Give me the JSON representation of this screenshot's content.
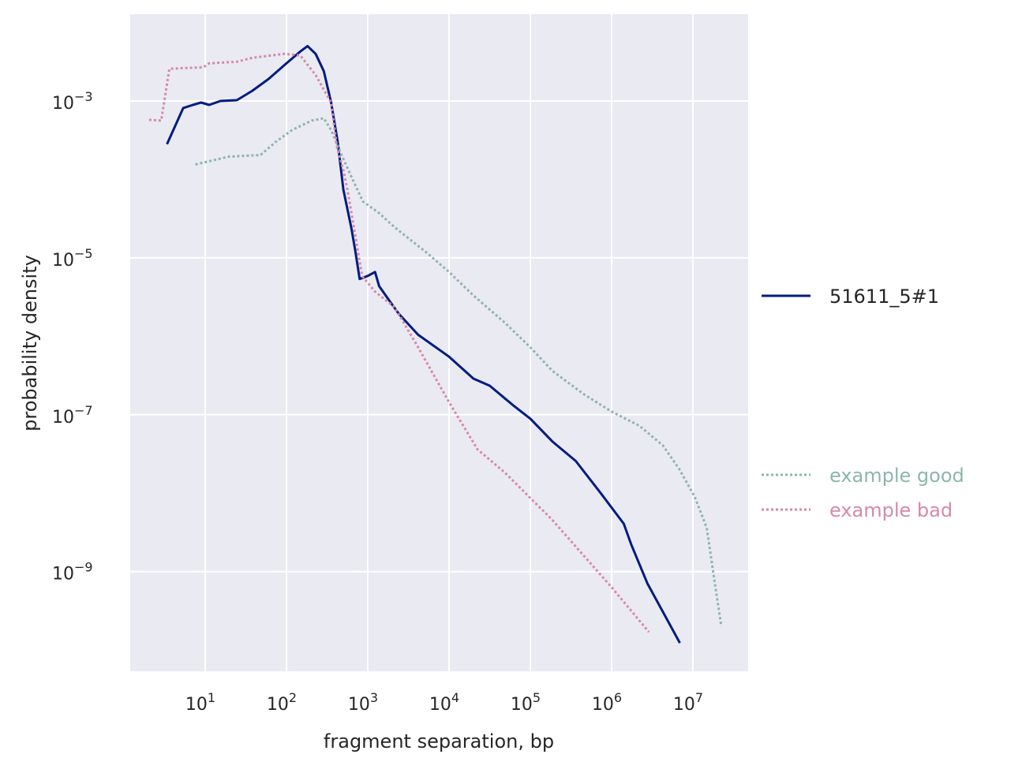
{
  "chart_data": {
    "type": "line",
    "title": "",
    "xlabel": "fragment separation, bp",
    "ylabel": "probability density",
    "xscale": "log",
    "yscale": "log",
    "xlim_log10": [
      0.078,
      7.68
    ],
    "ylim_log10": [
      -10.27,
      -1.894
    ],
    "x_ticks": [
      {
        "base": "10",
        "exp": "1",
        "value": 1
      },
      {
        "base": "10",
        "exp": "2",
        "value": 2
      },
      {
        "base": "10",
        "exp": "3",
        "value": 3
      },
      {
        "base": "10",
        "exp": "4",
        "value": 4
      },
      {
        "base": "10",
        "exp": "5",
        "value": 5
      },
      {
        "base": "10",
        "exp": "6",
        "value": 6
      },
      {
        "base": "10",
        "exp": "7",
        "value": 7
      }
    ],
    "y_ticks": [
      {
        "base": "10",
        "exp": "−3",
        "value": -3
      },
      {
        "base": "10",
        "exp": "−5",
        "value": -5
      },
      {
        "base": "10",
        "exp": "−7",
        "value": -7
      },
      {
        "base": "10",
        "exp": "−9",
        "value": -9
      }
    ],
    "grid": true,
    "background": "#eaeaf2",
    "legend_placement": "right-outside",
    "series": [
      {
        "name": "51611_5#1",
        "color": "#001c7f",
        "style": "solid",
        "x_log10": [
          0.53,
          0.73,
          0.85,
          0.95,
          1.05,
          1.19,
          1.39,
          1.58,
          1.78,
          2.0,
          2.17,
          2.26,
          2.36,
          2.46,
          2.55,
          2.63,
          2.7,
          2.8,
          2.85,
          2.9,
          3.0,
          3.09,
          3.14,
          3.29,
          3.38,
          3.62,
          4.0,
          4.3,
          4.5,
          4.79,
          5.0,
          5.27,
          5.56,
          5.86,
          6.15,
          6.24,
          6.44,
          6.84
        ],
        "y_log10": [
          -3.55,
          -3.09,
          -3.05,
          -3.02,
          -3.05,
          -3.0,
          -2.99,
          -2.87,
          -2.72,
          -2.52,
          -2.37,
          -2.3,
          -2.4,
          -2.62,
          -3.02,
          -3.52,
          -4.13,
          -4.63,
          -4.93,
          -5.27,
          -5.23,
          -5.18,
          -5.36,
          -5.58,
          -5.71,
          -5.98,
          -6.26,
          -6.54,
          -6.63,
          -6.88,
          -7.05,
          -7.34,
          -7.59,
          -7.99,
          -8.39,
          -8.65,
          -9.15,
          -9.91
        ]
      },
      {
        "name": "example good",
        "color": "#8db5ad",
        "style": "dotted",
        "x_log10": [
          0.88,
          1.29,
          1.68,
          1.87,
          2.07,
          2.31,
          2.46,
          2.55,
          2.65,
          2.8,
          2.94,
          3.14,
          3.33,
          3.72,
          4.0,
          4.3,
          4.69,
          5.0,
          5.27,
          5.66,
          6.0,
          6.34,
          6.63,
          6.83,
          7.02,
          7.17,
          7.27,
          7.35
        ],
        "y_log10": [
          -3.81,
          -3.71,
          -3.69,
          -3.52,
          -3.37,
          -3.25,
          -3.22,
          -3.37,
          -3.62,
          -3.97,
          -4.28,
          -4.43,
          -4.61,
          -4.93,
          -5.18,
          -5.48,
          -5.83,
          -6.14,
          -6.44,
          -6.74,
          -6.96,
          -7.14,
          -7.39,
          -7.69,
          -8.04,
          -8.44,
          -9.15,
          -9.7
        ]
      },
      {
        "name": "example bad",
        "color": "#d68aa7",
        "style": "dotted",
        "x_log10": [
          0.31,
          0.46,
          0.56,
          0.98,
          1.05,
          1.39,
          1.58,
          1.97,
          2.17,
          2.36,
          2.55,
          2.62,
          2.7,
          2.75,
          2.85,
          2.93,
          3.09,
          3.33,
          3.62,
          4.0,
          4.35,
          4.69,
          5.27,
          6.0,
          6.46
        ],
        "y_log10": [
          -3.24,
          -3.25,
          -2.59,
          -2.57,
          -2.52,
          -2.5,
          -2.45,
          -2.4,
          -2.42,
          -2.67,
          -3.02,
          -3.58,
          -3.88,
          -4.13,
          -4.73,
          -5.23,
          -5.43,
          -5.63,
          -6.14,
          -6.84,
          -7.44,
          -7.74,
          -8.34,
          -9.2,
          -9.77
        ]
      }
    ]
  }
}
